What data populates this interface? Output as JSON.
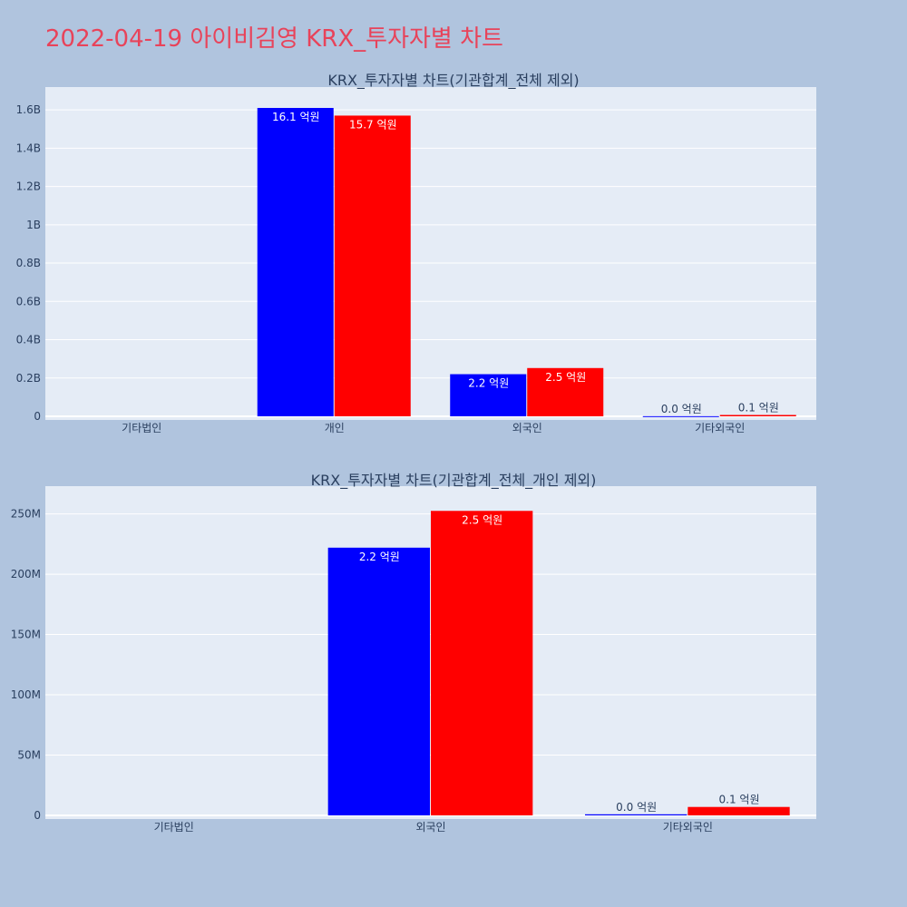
{
  "title": "2022-04-19 아이비김영 KRX_투자자별 차트",
  "colors": {
    "buy": "#0000ff",
    "sell": "#ff0000",
    "plot_bg": "#e5ecf6",
    "page_bg": "#b0c4de"
  },
  "chart_data": [
    {
      "type": "bar",
      "title": "KRX_투자자별 차트(기관합계_전체 제외)",
      "categories": [
        "기타법인",
        "개인",
        "외국인",
        "기타외국인"
      ],
      "series": [
        {
          "values": [
            0,
            1610000000,
            220000000,
            900000
          ],
          "labels": [
            "",
            "16.1 억원",
            "2.2 억원",
            "0.0 억원"
          ]
        },
        {
          "values": [
            0,
            1570000000,
            252000000,
            7000000
          ],
          "labels": [
            "",
            "15.7 억원",
            "2.5 억원",
            "0.1 억원"
          ]
        }
      ],
      "ylim": [
        0,
        1700000000
      ],
      "yticks": [
        0,
        200000000,
        400000000,
        600000000,
        800000000,
        1000000000,
        1200000000,
        1400000000,
        1600000000
      ],
      "ytick_labels": [
        "0",
        "0.2B",
        "0.4B",
        "0.6B",
        "0.8B",
        "1B",
        "1.2B",
        "1.4B",
        "1.6B"
      ],
      "grid": true
    },
    {
      "type": "bar",
      "title": "KRX_투자자별 차트(기관합계_전체_개인 제외)",
      "categories": [
        "기타법인",
        "외국인",
        "기타외국인"
      ],
      "series": [
        {
          "values": [
            0,
            222000000,
            900000
          ],
          "labels": [
            "",
            "2.2 억원",
            "0.0 억원"
          ]
        },
        {
          "values": [
            0,
            252500000,
            7000000
          ],
          "labels": [
            "",
            "2.5 억원",
            "0.1 억원"
          ]
        }
      ],
      "ylim": [
        0,
        270000000
      ],
      "yticks": [
        0,
        50000000,
        100000000,
        150000000,
        200000000,
        250000000
      ],
      "ytick_labels": [
        "0",
        "50M",
        "100M",
        "150M",
        "200M",
        "250M"
      ],
      "grid": true
    }
  ]
}
